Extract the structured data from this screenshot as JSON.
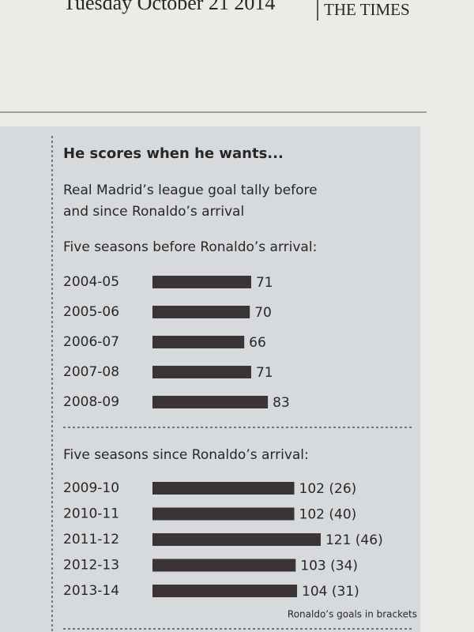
{
  "header": {
    "date": "Tuesday October 21 2014",
    "paper": "THE TIMES"
  },
  "chart_data": [
    {
      "type": "bar",
      "orientation": "horizontal",
      "title": "He scores when he wants...",
      "subtitle": [
        "Real Madrid’s league goal tally before",
        "and since Ronaldo’s arrival"
      ],
      "heading": "Five seasons before Ronaldo’s arrival:",
      "categories": [
        "2004-05",
        "2005-06",
        "2006-07",
        "2007-08",
        "2008-09"
      ],
      "values": [
        71,
        70,
        66,
        71,
        83
      ],
      "color": "#3b3434"
    },
    {
      "type": "bar",
      "orientation": "horizontal",
      "heading": "Five seasons since Ronaldo’s arrival:",
      "categories": [
        "2009-10",
        "2010-11",
        "2011-12",
        "2012-13",
        "2013-14"
      ],
      "values": [
        102,
        102,
        121,
        103,
        104
      ],
      "value_labels": [
        "102 (26)",
        "102 (40)",
        "121 (46)",
        "103 (34)",
        "104 (31)"
      ],
      "color": "#3b3434",
      "note": "Ronaldo’s goals in brackets"
    }
  ]
}
